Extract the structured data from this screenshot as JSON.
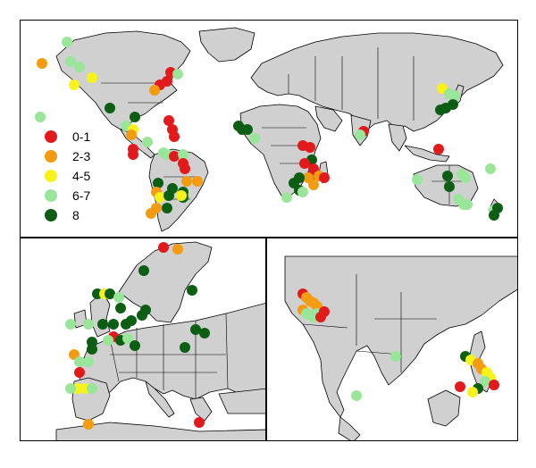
{
  "legend": {
    "items": [
      {
        "label": "0-1",
        "color": "#e31a1c"
      },
      {
        "label": "2-3",
        "color": "#f39c12"
      },
      {
        "label": "4-5",
        "color": "#f7f21a"
      },
      {
        "label": "6-7",
        "color": "#99e599"
      },
      {
        "label": "8",
        "color": "#0b5e13"
      }
    ]
  }
}
